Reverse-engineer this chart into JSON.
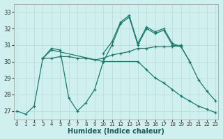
{
  "xlabel": "Humidex (Indice chaleur)",
  "bg_color": "#cff0ee",
  "grid_color": "#b5dbd9",
  "line_color": "#1a7a6e",
  "xlim": [
    -0.3,
    23.3
  ],
  "ylim": [
    26.5,
    33.5
  ],
  "yticks": [
    27,
    28,
    29,
    30,
    31,
    32,
    33
  ],
  "xticks": [
    0,
    1,
    2,
    3,
    4,
    5,
    6,
    7,
    8,
    9,
    10,
    11,
    12,
    13,
    14,
    15,
    16,
    17,
    18,
    19,
    20,
    21,
    22,
    23
  ],
  "series": [
    {
      "x": [
        0,
        1,
        2,
        3,
        4,
        5,
        6,
        7,
        8,
        9,
        10,
        11,
        12,
        13,
        14,
        15,
        16,
        17,
        18,
        19,
        20,
        21,
        22,
        23
      ],
      "y": [
        27.0,
        26.8,
        27.3,
        30.2,
        30.8,
        30.7,
        27.8,
        27.0,
        27.5,
        28.3,
        30.0,
        31.0,
        32.3,
        32.7,
        31.0,
        32.0,
        31.7,
        31.9,
        31.0,
        30.9,
        30.0,
        28.9,
        28.2,
        27.6
      ]
    },
    {
      "x": [
        3,
        4,
        5,
        6,
        7,
        8,
        9,
        10,
        11,
        12,
        13,
        14,
        15,
        16,
        17,
        18,
        19
      ],
      "y": [
        30.2,
        30.2,
        30.3,
        30.3,
        30.2,
        30.2,
        30.1,
        30.2,
        30.4,
        30.5,
        30.6,
        30.8,
        30.8,
        30.9,
        30.9,
        30.9,
        31.0
      ]
    },
    {
      "x": [
        3,
        4,
        10,
        14,
        15,
        16,
        17,
        18,
        19,
        20,
        21,
        22,
        23
      ],
      "y": [
        30.2,
        30.7,
        30.0,
        30.0,
        29.5,
        29.0,
        28.7,
        28.3,
        27.9,
        27.6,
        27.3,
        27.1,
        26.9
      ]
    },
    {
      "x": [
        10,
        11,
        12,
        13,
        14,
        15,
        16,
        17,
        18,
        19,
        20
      ],
      "y": [
        30.5,
        31.2,
        32.4,
        32.8,
        31.1,
        32.1,
        31.8,
        32.0,
        31.1,
        30.9,
        30.0
      ]
    }
  ]
}
